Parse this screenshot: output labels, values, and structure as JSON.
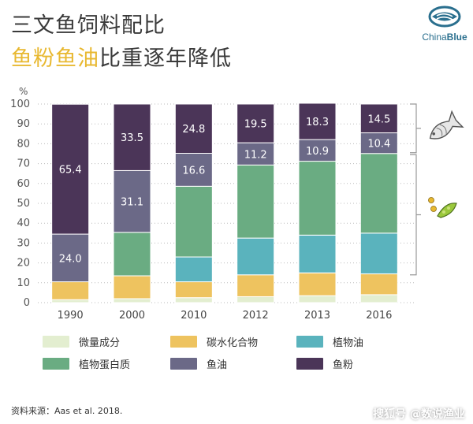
{
  "title": {
    "line1": "三文鱼饲料配比",
    "line2_highlight": "鱼粉鱼油",
    "line2_rest": "比重逐年降低"
  },
  "logo": {
    "text_a": "China",
    "text_b": "Blue"
  },
  "chart_data": {
    "type": "bar",
    "stacked": true,
    "categories": [
      "1990",
      "2000",
      "2010",
      "2012",
      "2013",
      "2016"
    ],
    "yunit": "%",
    "ylim": [
      0,
      100
    ],
    "yticks": [
      0,
      10,
      20,
      30,
      40,
      50,
      60,
      70,
      80,
      90,
      100
    ],
    "series": [
      {
        "name": "微量成分",
        "color": "#e3eed0",
        "values": [
          1.5,
          2,
          2.5,
          3,
          3.5,
          4
        ]
      },
      {
        "name": "碳水化合物",
        "color": "#eec35f",
        "values": [
          9,
          11.5,
          8,
          11,
          11.5,
          10.5
        ]
      },
      {
        "name": "植物油",
        "color": "#5ab3bd",
        "values": [
          0,
          0,
          12.5,
          18.5,
          19,
          20.5
        ]
      },
      {
        "name": "植物蛋白质",
        "color": "#6aac82",
        "values": [
          0,
          21.9,
          35.6,
          36.8,
          37.2,
          40.1
        ]
      },
      {
        "name": "鱼油",
        "color": "#6b6987",
        "values": [
          24.0,
          31.1,
          16.6,
          11.2,
          10.9,
          10.4
        ]
      },
      {
        "name": "鱼粉",
        "color": "#4b3558",
        "values": [
          65.4,
          33.5,
          24.8,
          19.5,
          18.3,
          14.5
        ]
      }
    ],
    "data_labels": [
      {
        "series": "鱼油",
        "values": [
          "24.0",
          "31.1",
          "16.6",
          "11.2",
          "10.9",
          "10.4"
        ]
      },
      {
        "series": "鱼粉",
        "values": [
          "65.4",
          "33.5",
          "24.8",
          "19.5",
          "18.3",
          "14.5"
        ]
      }
    ],
    "legend_position": "bottom"
  },
  "source": "资料来源：Aas et al. 2018.",
  "watermark": "搜狐号 @数说渔业"
}
